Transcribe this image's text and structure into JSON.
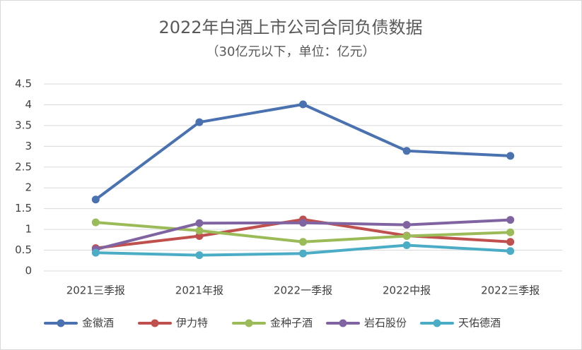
{
  "chart_data": {
    "type": "line",
    "title": "2022年白酒上市公司合同负债数据",
    "subtitle": "（30亿元以下，单位：亿元）",
    "categories": [
      "2021三季报",
      "2021年报",
      "2022一季报",
      "2022中报",
      "2022三季报"
    ],
    "series": [
      {
        "name": "金徽酒",
        "color": "#4a72b0",
        "values": [
          1.72,
          3.58,
          4.01,
          2.89,
          2.77
        ]
      },
      {
        "name": "伊力特",
        "color": "#c0504d",
        "values": [
          0.55,
          0.84,
          1.24,
          0.85,
          0.7
        ]
      },
      {
        "name": "金种子酒",
        "color": "#9bbb59",
        "values": [
          1.17,
          0.97,
          0.7,
          0.84,
          0.93
        ]
      },
      {
        "name": "岩石股份",
        "color": "#8064a2",
        "values": [
          0.52,
          1.15,
          1.16,
          1.11,
          1.23
        ]
      },
      {
        "name": "天佑德酒",
        "color": "#4bacc6",
        "values": [
          0.44,
          0.38,
          0.42,
          0.62,
          0.48
        ]
      }
    ],
    "ylim": [
      0,
      4.5
    ],
    "yticks": [
      0,
      0.5,
      1,
      1.5,
      2,
      2.5,
      3,
      3.5,
      4,
      4.5
    ],
    "grid": true
  }
}
